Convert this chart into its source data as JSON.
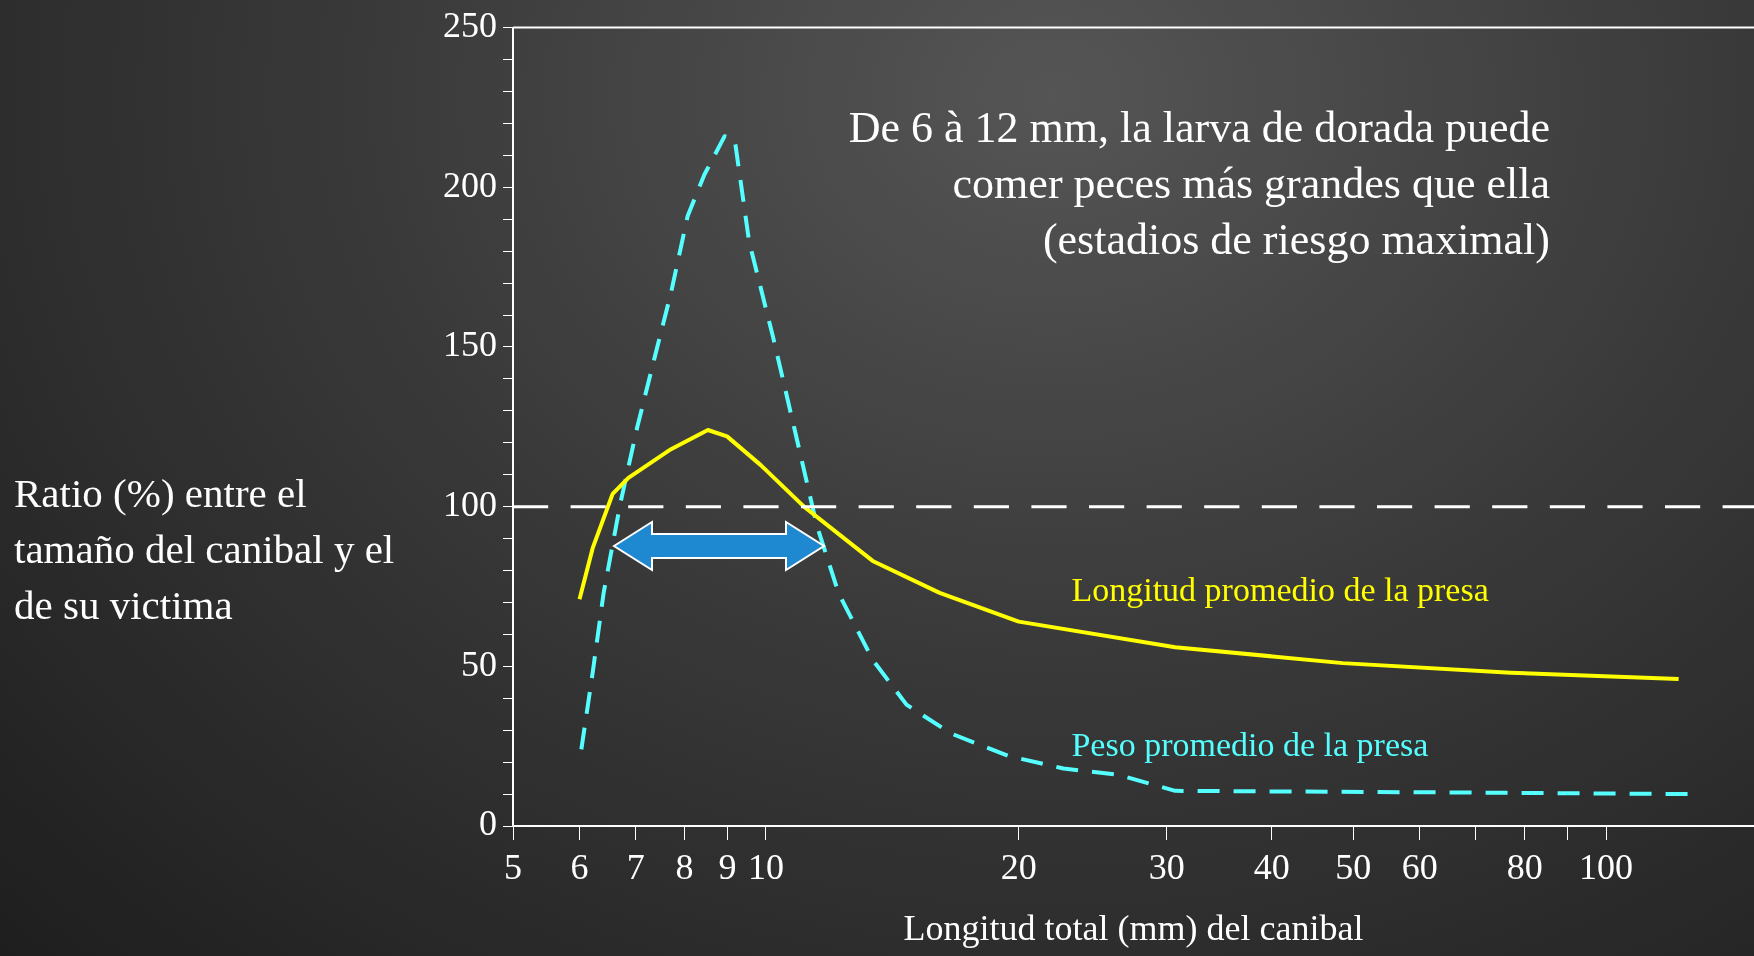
{
  "chart_data": {
    "type": "line",
    "xlabel": "Longitud total (mm) del canibal",
    "ylabel": "Ratio (%) entre el tamaño del canibal y el de su victima",
    "annotations": [
      "De 6 à 12 mm, la larva de dorada puede comer peces más grandes que ella (estadios de riesgo maximal)"
    ],
    "log": "x",
    "xlim": [
      5,
      150
    ],
    "ylim": [
      0,
      250
    ],
    "xticks": [
      5,
      6,
      7,
      8,
      9,
      10,
      20,
      30,
      40,
      50,
      60,
      {
        "value": 70,
        "label": null
      },
      80,
      {
        "value": 90,
        "label": null
      },
      100
    ],
    "yticks": [
      0,
      {
        "value": 10,
        "label": null
      },
      {
        "value": 20,
        "label": null
      },
      {
        "value": 30,
        "label": null
      },
      {
        "value": 40,
        "label": null
      },
      50,
      {
        "value": 60,
        "label": null
      },
      {
        "value": 70,
        "label": null
      },
      {
        "value": 80,
        "label": null
      },
      {
        "value": 90,
        "label": null
      },
      100,
      {
        "value": 110,
        "label": null
      },
      {
        "value": 120,
        "label": null
      },
      {
        "value": 130,
        "label": null
      },
      {
        "value": 140,
        "label": null
      },
      150,
      {
        "value": 160,
        "label": null
      },
      {
        "value": 170,
        "label": null
      },
      {
        "value": 180,
        "label": null
      },
      {
        "value": 190,
        "label": null
      },
      200,
      {
        "value": 210,
        "label": null
      },
      {
        "value": 220,
        "label": null
      },
      {
        "value": 230,
        "label": null
      },
      {
        "value": 240,
        "label": null
      },
      250
    ],
    "grid": false,
    "legend": false,
    "marker": "none",
    "ref_lines": [
      {
        "axis": "y",
        "value": 100,
        "color": "#ffffff",
        "line_style": "dashed"
      }
    ],
    "series": [
      {
        "name": "Longitud promedio de la presa",
        "color": "#ffff00",
        "line_style": "solid",
        "x": [
          6.0,
          6.22,
          6.57,
          6.86,
          7.71,
          8.53,
          8.99,
          9.86,
          11.1,
          13.4,
          16.1,
          20,
          30.7,
          48.6,
          77,
          122
        ],
        "values": [
          71,
          87,
          104,
          109,
          118,
          124,
          122,
          113,
          100,
          83,
          73,
          64,
          56,
          51,
          48,
          46
        ]
      },
      {
        "name": "Peso promedio de la presa",
        "color": "#55ffff",
        "line_style": "dashed",
        "x": [
          6.03,
          6.22,
          6.41,
          6.71,
          7.03,
          7.36,
          7.71,
          8.07,
          8.45,
          8.93,
          9.18,
          9.55,
          10.2,
          10.8,
          11.5,
          12.2,
          13.4,
          14.7,
          16.6,
          19.4,
          22.6,
          26.3,
          30.7,
          66,
          126
        ],
        "values": [
          24,
          48,
          73,
          101,
          125,
          146,
          167,
          191,
          204,
          216,
          215,
          183,
          153,
          125,
          94,
          73,
          52,
          38,
          29,
          22,
          18,
          16,
          11,
          10.5,
          10
        ]
      }
    ]
  }
}
